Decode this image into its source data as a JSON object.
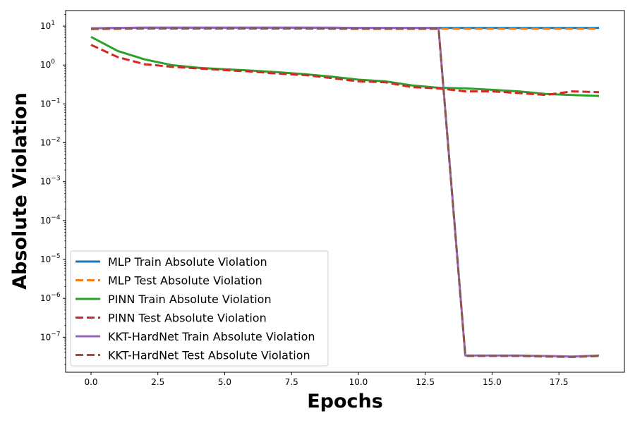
{
  "chart_data": {
    "type": "line",
    "xlabel": "Epochs",
    "ylabel": "Absolute Violation",
    "xlim": [
      -0.95,
      19.95
    ],
    "ylim_log10": [
      -7.9,
      1.4
    ],
    "y_scale": "log",
    "grid": false,
    "legend_placement": "lower-left",
    "x_ticks": [
      {
        "value": 0,
        "label": "0.0"
      },
      {
        "value": 2.5,
        "label": "2.5"
      },
      {
        "value": 5,
        "label": "5.0"
      },
      {
        "value": 7.5,
        "label": "7.5"
      },
      {
        "value": 10,
        "label": "10.0"
      },
      {
        "value": 12.5,
        "label": "12.5"
      },
      {
        "value": 15,
        "label": "15.0"
      },
      {
        "value": 17.5,
        "label": "17.5"
      }
    ],
    "y_ticks": [
      {
        "exp": 1,
        "base": "10",
        "sup": "1"
      },
      {
        "exp": 0,
        "base": "10",
        "sup": "0"
      },
      {
        "exp": -1,
        "base": "10",
        "sup": "−1"
      },
      {
        "exp": -2,
        "base": "10",
        "sup": "−2"
      },
      {
        "exp": -3,
        "base": "10",
        "sup": "−3"
      },
      {
        "exp": -4,
        "base": "10",
        "sup": "−4"
      },
      {
        "exp": -5,
        "base": "10",
        "sup": "−5"
      },
      {
        "exp": -6,
        "base": "10",
        "sup": "−6"
      },
      {
        "exp": -7,
        "base": "10",
        "sup": "−7"
      }
    ],
    "x": [
      0,
      1,
      2,
      3,
      4,
      5,
      6,
      7,
      8,
      9,
      10,
      11,
      12,
      13,
      14,
      15,
      16,
      17,
      18,
      19
    ],
    "series": [
      {
        "name": "MLP Train Absolute Violation",
        "color": "#1f77b4",
        "dash": "solid",
        "values": [
          8.8,
          9.0,
          9.1,
          9.1,
          9.1,
          9.1,
          9.1,
          9.1,
          9.1,
          9.1,
          9.0,
          9.0,
          9.0,
          9.0,
          9.0,
          9.0,
          9.0,
          9.0,
          9.0,
          9.0
        ]
      },
      {
        "name": "MLP Test Absolute Violation",
        "color": "#ff7f0e",
        "dash": "dashed",
        "values": [
          8.4,
          8.6,
          8.7,
          8.7,
          8.7,
          8.7,
          8.7,
          8.7,
          8.7,
          8.7,
          8.6,
          8.6,
          8.6,
          8.6,
          8.6,
          8.6,
          8.6,
          8.6,
          8.6,
          8.6
        ]
      },
      {
        "name": "PINN Train Absolute Violation",
        "color": "#2ca02c",
        "dash": "solid",
        "values": [
          5.3,
          2.3,
          1.4,
          1.0,
          0.85,
          0.78,
          0.72,
          0.65,
          0.58,
          0.5,
          0.42,
          0.38,
          0.3,
          0.26,
          0.25,
          0.23,
          0.21,
          0.18,
          0.17,
          0.16
        ]
      },
      {
        "name": "PINN Test Absolute Violation",
        "color": "#d62728",
        "dash": "dashed",
        "values": [
          3.3,
          1.6,
          1.05,
          0.9,
          0.82,
          0.74,
          0.68,
          0.6,
          0.55,
          0.46,
          0.38,
          0.36,
          0.27,
          0.25,
          0.21,
          0.21,
          0.19,
          0.17,
          0.21,
          0.2
        ]
      },
      {
        "name": "KKT-HardNet Train Absolute Violation",
        "color": "#9467bd",
        "dash": "solid",
        "values": [
          8.8,
          9.0,
          9.1,
          9.1,
          9.1,
          9.1,
          9.1,
          9.1,
          9.1,
          9.0,
          9.0,
          9.0,
          9.0,
          9.0,
          3.4e-08,
          3.4e-08,
          3.4e-08,
          3.3e-08,
          3.2e-08,
          3.4e-08
        ]
      },
      {
        "name": "KKT-HardNet Test Absolute Violation",
        "color": "#8c564b",
        "dash": "dashed",
        "values": [
          8.5,
          8.6,
          8.7,
          8.7,
          8.7,
          8.7,
          8.7,
          8.7,
          8.7,
          8.6,
          8.6,
          8.6,
          8.6,
          8.6,
          3.3e-08,
          3.3e-08,
          3.3e-08,
          3.2e-08,
          3.1e-08,
          3.3e-08
        ]
      }
    ]
  }
}
